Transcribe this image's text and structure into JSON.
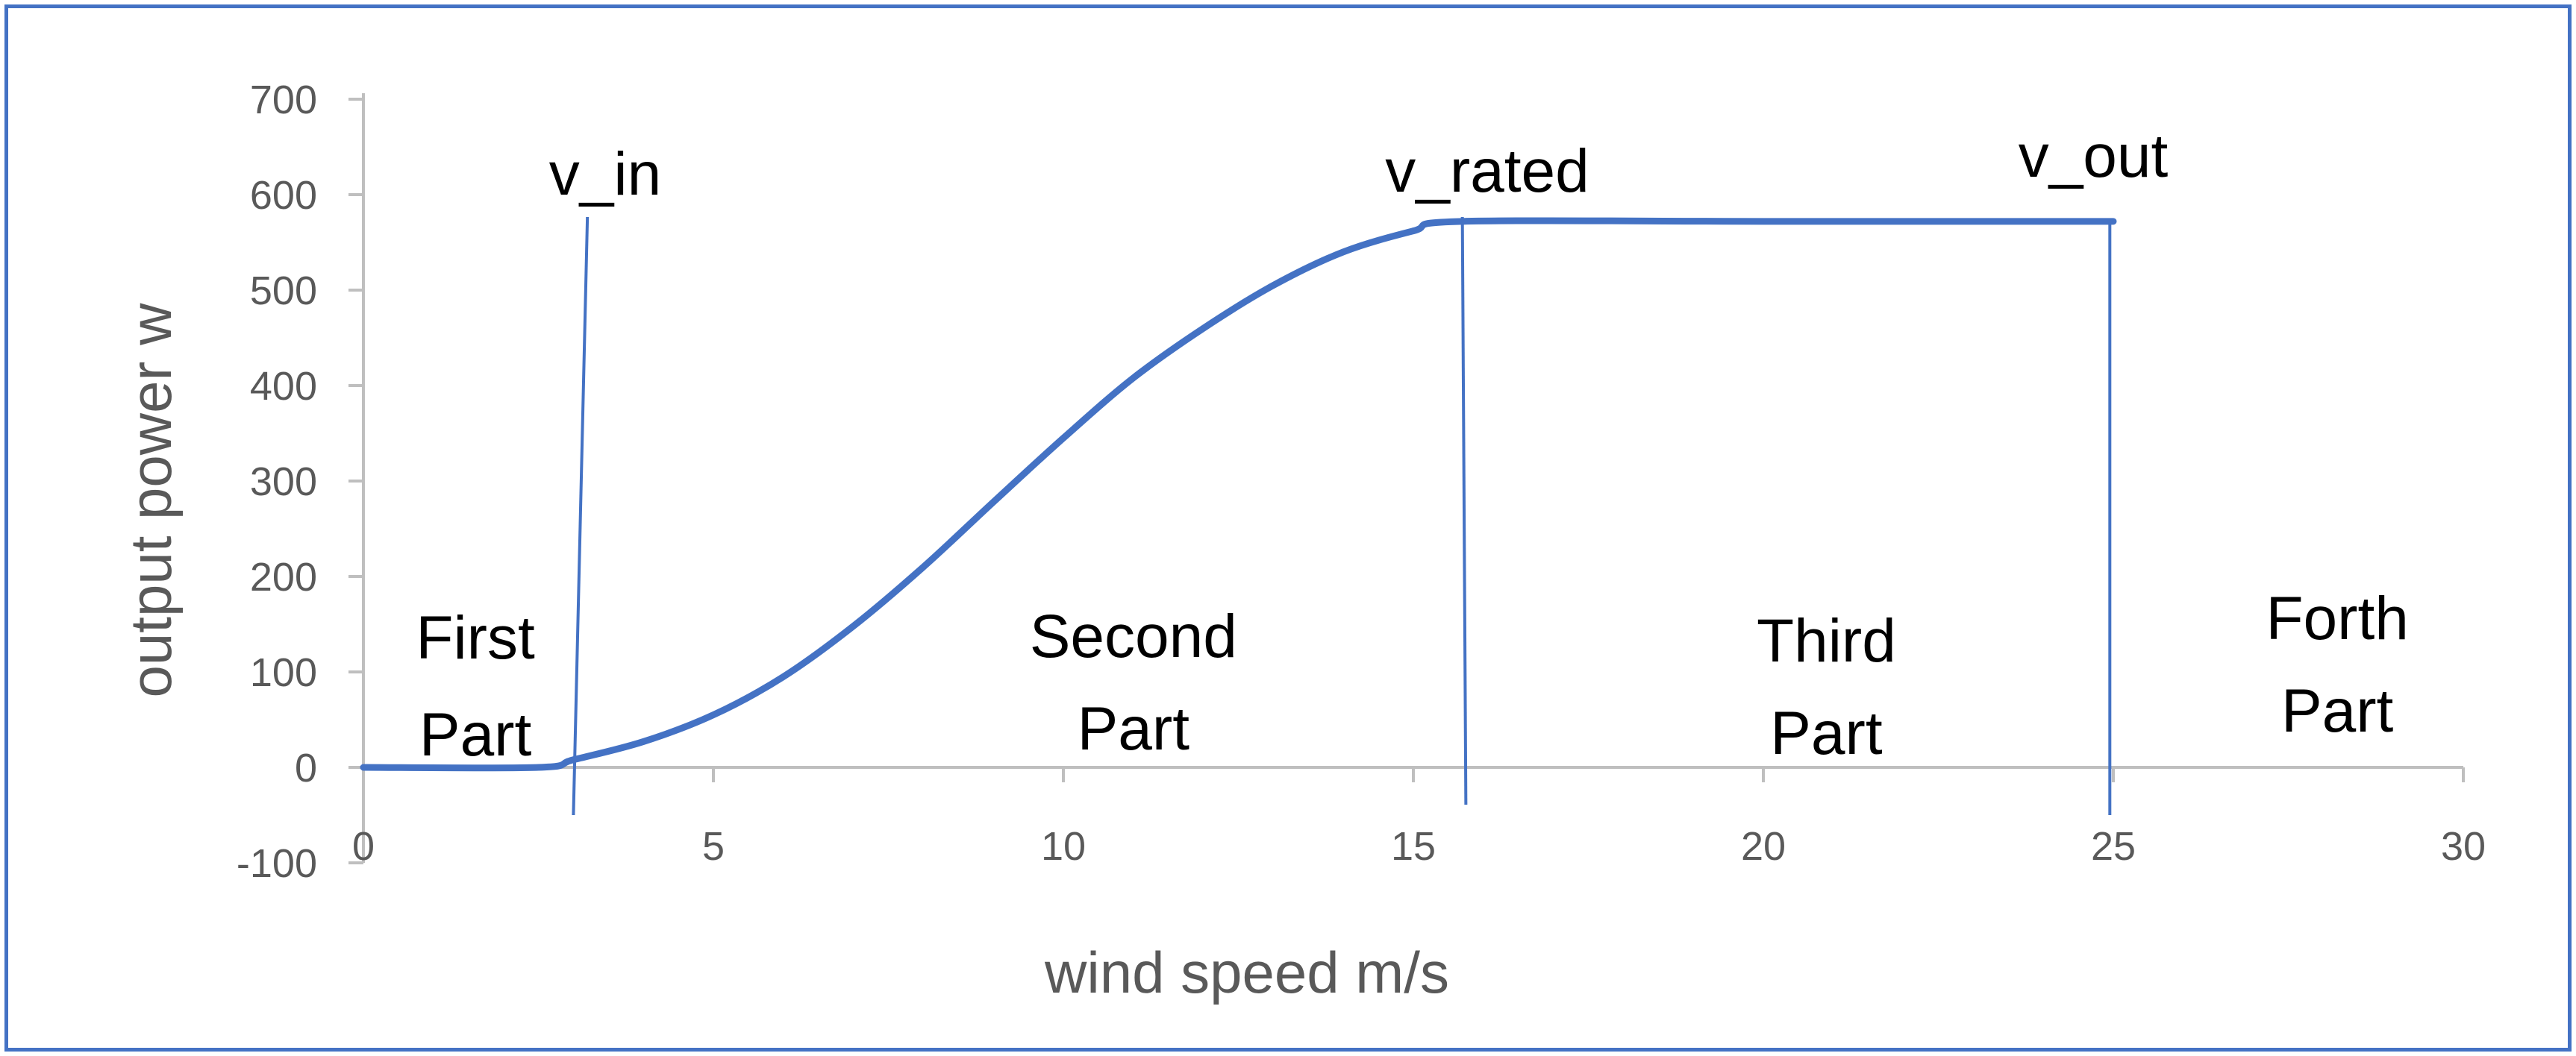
{
  "chart_data": {
    "type": "line",
    "title": "",
    "xlabel": "wind speed m/s",
    "ylabel": "output power w",
    "xlim": [
      0,
      30
    ],
    "ylim": [
      -100,
      700
    ],
    "x_ticks": [
      "0",
      "5",
      "10",
      "15",
      "20",
      "25",
      "30"
    ],
    "y_ticks": [
      "-100",
      "0",
      "100",
      "200",
      "300",
      "400",
      "500",
      "600",
      "700"
    ],
    "grid": false,
    "series": [
      {
        "name": "output power",
        "x": [
          0,
          2.5,
          3,
          4,
          5,
          6,
          7,
          8,
          9,
          10,
          11,
          12,
          13,
          14,
          15,
          15.7,
          20,
          25
        ],
        "y": [
          0,
          0,
          8,
          27,
          55,
          95,
          148,
          210,
          278,
          345,
          408,
          460,
          505,
          540,
          562,
          572,
          572,
          572
        ]
      }
    ],
    "markers": [
      {
        "label": "v_in",
        "x": 3.1
      },
      {
        "label": "v_rated",
        "x": 15.7
      },
      {
        "label": "v_out",
        "x": 24.9
      }
    ],
    "annotations": [
      {
        "line1": "First",
        "line2": "Part",
        "x": 1.6
      },
      {
        "line1": "Second",
        "line2": "Part",
        "x": 11.0
      },
      {
        "line1": "Third",
        "line2": "Part",
        "x": 20.9
      },
      {
        "line1": "Forth",
        "line2": "Part",
        "x": 28.2
      }
    ],
    "colors": {
      "line": "#4472c4",
      "axis": "#bfbfbf",
      "frame": "#4472c4"
    }
  }
}
